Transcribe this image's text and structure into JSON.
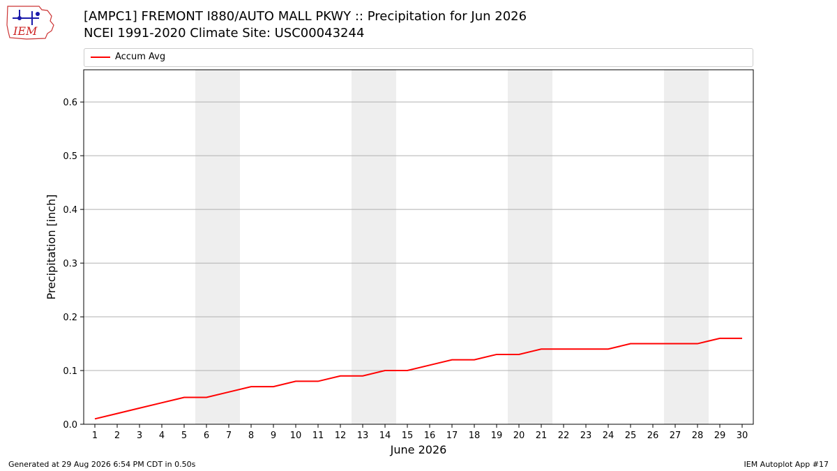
{
  "logo": {
    "text": "IEM"
  },
  "header": {
    "title_line1": "[AMPC1] FREMONT I880/AUTO MALL PKWY :: Precipitation for Jun 2026",
    "title_line2": "NCEI 1991-2020 Climate Site: USC00043244"
  },
  "footer": {
    "left": "Generated at 29 Aug 2026 6:54 PM CDT in 0.50s",
    "right": "IEM Autoplot App #17"
  },
  "colors": {
    "series": "#ff0000",
    "weekend_shade": "#eeeeee",
    "grid": "#b0b0b0",
    "legend_border": "#cccccc"
  },
  "chart_data": {
    "type": "line",
    "title": "[AMPC1] FREMONT I880/AUTO MALL PKWY :: Precipitation for Jun 2026",
    "subtitle": "NCEI 1991-2020 Climate Site: USC00043244",
    "xlabel": "June 2026",
    "ylabel": "Precipitation [inch]",
    "x": [
      1,
      2,
      3,
      4,
      5,
      6,
      7,
      8,
      9,
      10,
      11,
      12,
      13,
      14,
      15,
      16,
      17,
      18,
      19,
      20,
      21,
      22,
      23,
      24,
      25,
      26,
      27,
      28,
      29,
      30
    ],
    "xlim": [
      0.5,
      30.5
    ],
    "ylim": [
      0,
      0.66
    ],
    "yticks": [
      0.0,
      0.1,
      0.2,
      0.3,
      0.4,
      0.5,
      0.6
    ],
    "ytick_labels": [
      "0.0",
      "0.1",
      "0.2",
      "0.3",
      "0.4",
      "0.5",
      "0.6"
    ],
    "grid": "horizontal",
    "legend": {
      "placement": "top",
      "entries": [
        "Accum Avg"
      ]
    },
    "weekend_bands": [
      [
        6,
        7
      ],
      [
        13,
        14
      ],
      [
        20,
        21
      ],
      [
        27,
        28
      ]
    ],
    "series": [
      {
        "name": "Accum Avg",
        "color": "#ff0000",
        "values": [
          0.01,
          0.02,
          0.03,
          0.04,
          0.05,
          0.05,
          0.06,
          0.07,
          0.07,
          0.08,
          0.08,
          0.09,
          0.09,
          0.1,
          0.1,
          0.11,
          0.12,
          0.12,
          0.13,
          0.13,
          0.14,
          0.14,
          0.14,
          0.14,
          0.15,
          0.15,
          0.15,
          0.15,
          0.16,
          0.16
        ]
      }
    ]
  }
}
